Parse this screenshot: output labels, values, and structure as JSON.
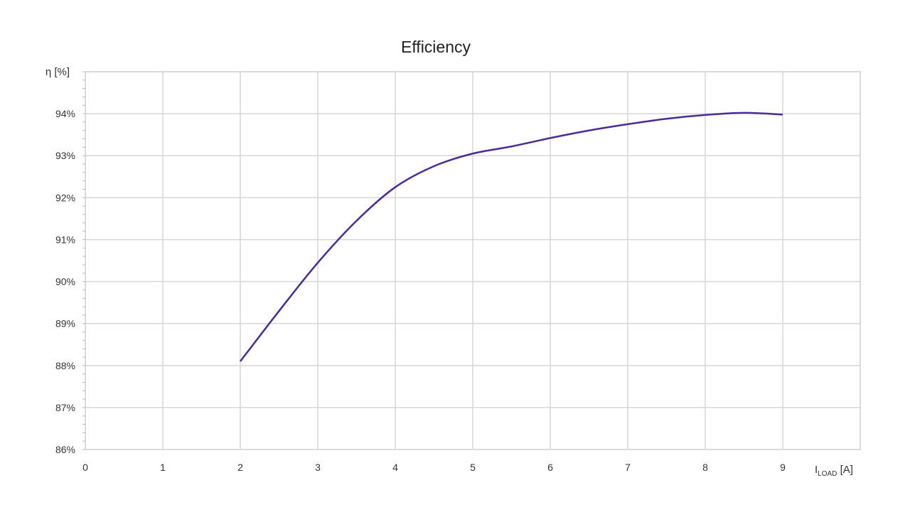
{
  "chart_data": {
    "type": "line",
    "title": "Efficiency",
    "ylabel": "η [%]",
    "xlabel_main": "I",
    "xlabel_sub": "LOAD",
    "xlabel_unit": " [A]",
    "xlim": [
      0,
      10
    ],
    "ylim": [
      86,
      95
    ],
    "x_ticks": [
      "0",
      "1",
      "2",
      "3",
      "4",
      "5",
      "6",
      "7",
      "8",
      "9"
    ],
    "y_ticks": [
      "86%",
      "87%",
      "88%",
      "89%",
      "90%",
      "91%",
      "92%",
      "93%",
      "94%"
    ],
    "grid": true,
    "line_color": "#4b2a9a",
    "series": [
      {
        "x": [
          2,
          2.5,
          3,
          3.5,
          4,
          4.5,
          5,
          5.5,
          6,
          6.5,
          7,
          7.5,
          8,
          8.5,
          9
        ],
        "y": [
          88.1,
          89.3,
          90.45,
          91.45,
          92.25,
          92.75,
          93.05,
          93.22,
          93.42,
          93.6,
          93.75,
          93.88,
          93.97,
          94.02,
          93.98
        ]
      }
    ]
  }
}
